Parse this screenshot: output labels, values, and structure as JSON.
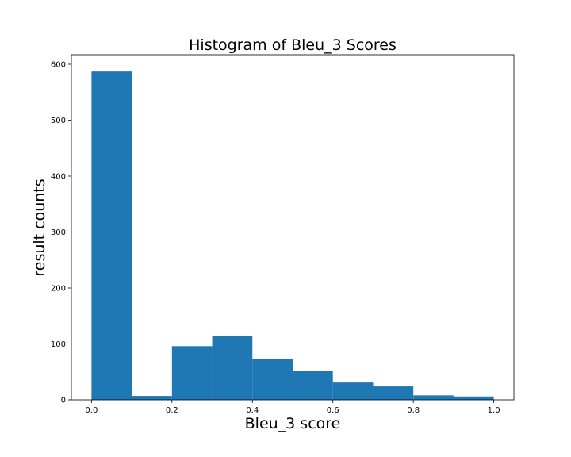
{
  "chart_data": {
    "type": "bar",
    "title": "Histogram of Bleu_3 Scores",
    "xlabel": "Bleu_3 score",
    "ylabel": "result counts",
    "xlim": [
      -0.05,
      1.05
    ],
    "ylim": [
      0,
      617
    ],
    "bin_width": 0.1,
    "bins": [
      {
        "start": 0.0,
        "end": 0.1,
        "count": 587
      },
      {
        "start": 0.1,
        "end": 0.2,
        "count": 7
      },
      {
        "start": 0.2,
        "end": 0.3,
        "count": 96
      },
      {
        "start": 0.3,
        "end": 0.4,
        "count": 114
      },
      {
        "start": 0.4,
        "end": 0.5,
        "count": 73
      },
      {
        "start": 0.5,
        "end": 0.6,
        "count": 52
      },
      {
        "start": 0.6,
        "end": 0.7,
        "count": 31
      },
      {
        "start": 0.7,
        "end": 0.8,
        "count": 24
      },
      {
        "start": 0.8,
        "end": 0.9,
        "count": 8
      },
      {
        "start": 0.9,
        "end": 1.0,
        "count": 6
      }
    ],
    "x_ticks": [
      "0.0",
      "0.2",
      "0.4",
      "0.6",
      "0.8",
      "1.0"
    ],
    "y_ticks": [
      "0",
      "100",
      "200",
      "300",
      "400",
      "500",
      "600"
    ],
    "bar_color": "#1f77b4",
    "grid": false,
    "legend": "none"
  }
}
